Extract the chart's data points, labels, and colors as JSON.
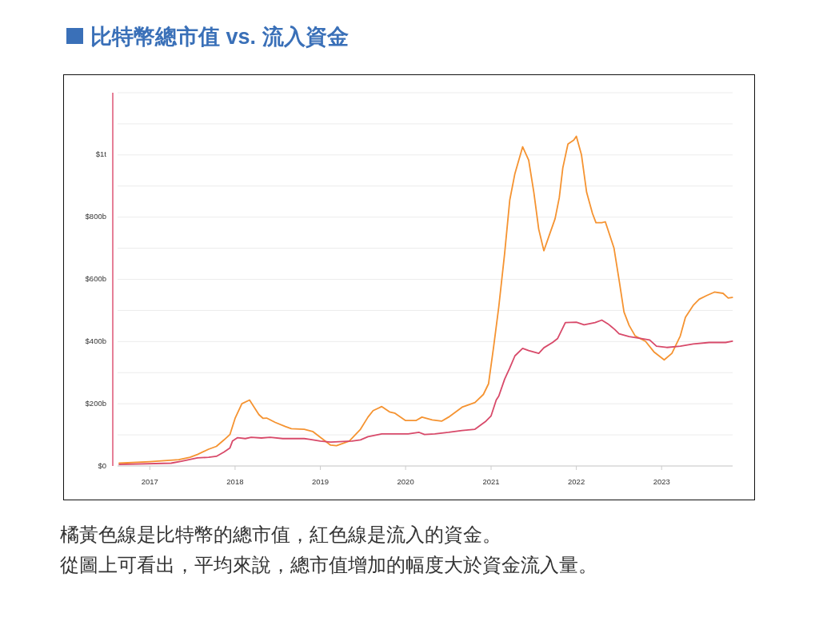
{
  "chart_data": {
    "type": "line",
    "title": "比特幣總市值 vs. 流入資金",
    "annotations": [
      "橘黃色線是比特幣的總市值，紅色線是流入的資金。",
      "從圖上可看出，平均來說，總市值增加的幅度大於資金流入量。"
    ],
    "xlim": [
      "2016-08-16",
      "2023-11-01"
    ],
    "xticks": [
      "2017",
      "2018",
      "2019",
      "2020",
      "2021",
      "2022",
      "2023"
    ],
    "ylim": [
      0,
      1200000000000.0
    ],
    "yticks": [
      {
        "value": 0,
        "label": "$0"
      },
      {
        "value": 100000000000.0,
        "label": null
      },
      {
        "value": 200000000000.0,
        "label": "$200b"
      },
      {
        "value": 300000000000.0,
        "label": null
      },
      {
        "value": 400000000000.0,
        "label": "$400b"
      },
      {
        "value": 500000000000.0,
        "label": null
      },
      {
        "value": 600000000000.0,
        "label": "$600b"
      },
      {
        "value": 700000000000.0,
        "label": null
      },
      {
        "value": 800000000000.0,
        "label": "$800b"
      },
      {
        "value": 900000000000.0,
        "label": null
      },
      {
        "value": 1000000000000.0,
        "label": "$1t"
      },
      {
        "value": 1100000000000.0,
        "label": null
      },
      {
        "value": 1200000000000.0,
        "label": null
      }
    ],
    "grid": "y",
    "series": [
      {
        "color": "#f59331",
        "x": [
          "2016-08-23",
          "2017-01-01",
          "2017-05-05",
          "2017-06-22",
          "2017-07-24",
          "2017-09-10",
          "2017-10-13",
          "2017-11-15",
          "2017-12-10",
          "2018-01-01",
          "2018-01-30",
          "2018-03-04",
          "2018-04-13",
          "2018-05-01",
          "2018-05-16",
          "2018-06-22",
          "2018-08-04",
          "2018-08-30",
          "2018-10-24",
          "2018-11-29",
          "2019-02-14",
          "2019-03-11",
          "2019-05-05",
          "2019-06-22",
          "2019-07-24",
          "2019-08-15",
          "2019-09-21",
          "2019-10-24",
          "2019-11-15",
          "2020-01-01",
          "2020-02-14",
          "2020-03-11",
          "2020-04-24",
          "2020-06-03",
          "2020-07-03",
          "2020-08-30",
          "2020-10-24",
          "2020-11-29",
          "2020-12-21",
          "2021-01-12",
          "2021-02-03",
          "2021-02-28",
          "2021-03-22",
          "2021-04-13",
          "2021-05-16",
          "2021-06-11",
          "2021-07-03",
          "2021-07-24",
          "2021-08-15",
          "2021-09-10",
          "2021-10-02",
          "2021-10-20",
          "2021-11-04",
          "2021-11-26",
          "2021-12-21",
          "2022-01-01",
          "2022-01-23",
          "2022-02-14",
          "2022-03-11",
          "2022-03-26",
          "2022-04-20",
          "2022-05-05",
          "2022-06-11",
          "2022-07-03",
          "2022-07-24",
          "2022-08-15",
          "2022-09-10",
          "2022-10-24",
          "2022-11-29",
          "2023-01-12",
          "2023-02-14",
          "2023-03-22",
          "2023-04-13",
          "2023-05-16",
          "2023-06-11",
          "2023-07-13",
          "2023-08-15",
          "2023-09-21",
          "2023-10-13",
          "2023-10-31"
        ],
        "values": [
          9000000000.0,
          14000000000.0,
          20000000000.0,
          28000000000.0,
          37000000000.0,
          54000000000.0,
          63000000000.0,
          84000000000.0,
          101000000000.0,
          153000000000.0,
          200000000000.0,
          212000000000.0,
          165000000000.0,
          153000000000.0,
          154000000000.0,
          140000000000.0,
          127000000000.0,
          120000000000.0,
          118000000000.0,
          111000000000.0,
          67000000000.0,
          65000000000.0,
          80000000000.0,
          118000000000.0,
          157000000000.0,
          178000000000.0,
          191000000000.0,
          174000000000.0,
          170000000000.0,
          146000000000.0,
          146000000000.0,
          157000000000.0,
          148000000000.0,
          144000000000.0,
          157000000000.0,
          189000000000.0,
          204000000000.0,
          230000000000.0,
          264000000000.0,
          384000000000.0,
          512000000000.0,
          683000000000.0,
          855000000000.0,
          940000000000.0,
          1026000000000.0,
          983000000000.0,
          880000000000.0,
          761000000000.0,
          692000000000.0,
          748000000000.0,
          795000000000.0,
          863000000000.0,
          958000000000.0,
          1035000000000.0,
          1048000000000.0,
          1060000000000.0,
          1000000000000.0,
          880000000000.0,
          812000000000.0,
          782000000000.0,
          782000000000.0,
          785000000000.0,
          701000000000.0,
          598000000000.0,
          495000000000.0,
          452000000000.0,
          418000000000.0,
          401000000000.0,
          367000000000.0,
          341000000000.0,
          362000000000.0,
          418000000000.0,
          478000000000.0,
          516000000000.0,
          536000000000.0,
          548000000000.0,
          559000000000.0,
          555000000000.0,
          540000000000.0,
          542000000000.0
        ]
      },
      {
        "color": "#d84a6a",
        "x": [
          "2016-08-23",
          "2017-04-02",
          "2017-05-16",
          "2017-07-24",
          "2017-09-10",
          "2017-10-13",
          "2017-11-15",
          "2017-12-10",
          "2017-12-21",
          "2018-01-12",
          "2018-02-14",
          "2018-03-11",
          "2018-04-24",
          "2018-05-31",
          "2018-07-24",
          "2018-10-24",
          "2018-11-15",
          "2019-01-01",
          "2019-02-14",
          "2019-05-16",
          "2019-06-22",
          "2019-07-24",
          "2019-09-21",
          "2020-01-12",
          "2020-02-28",
          "2020-03-22",
          "2020-05-05",
          "2020-07-03",
          "2020-08-30",
          "2020-10-24",
          "2020-12-10",
          "2021-01-01",
          "2021-01-23",
          "2021-02-03",
          "2021-02-28",
          "2021-03-22",
          "2021-04-13",
          "2021-05-16",
          "2021-06-11",
          "2021-07-24",
          "2021-08-15",
          "2021-09-21",
          "2021-10-13",
          "2021-11-15",
          "2022-01-01",
          "2022-02-03",
          "2022-03-22",
          "2022-04-20",
          "2022-05-16",
          "2022-06-14",
          "2022-07-03",
          "2022-08-15",
          "2022-10-02",
          "2022-11-11",
          "2022-12-10",
          "2023-01-23",
          "2023-03-22",
          "2023-05-16",
          "2023-07-24",
          "2023-10-02",
          "2023-10-31"
        ],
        "values": [
          5000000000.0,
          9000000000.0,
          15000000000.0,
          26000000000.0,
          28000000000.0,
          31000000000.0,
          45000000000.0,
          58000000000.0,
          80000000000.0,
          91000000000.0,
          88000000000.0,
          92000000000.0,
          90000000000.0,
          92000000000.0,
          88000000000.0,
          88000000000.0,
          86000000000.0,
          80000000000.0,
          77000000000.0,
          80000000000.0,
          84000000000.0,
          94000000000.0,
          103000000000.0,
          103000000000.0,
          108000000000.0,
          101000000000.0,
          103000000000.0,
          108000000000.0,
          114000000000.0,
          118000000000.0,
          144000000000.0,
          161000000000.0,
          212000000000.0,
          225000000000.0,
          279000000000.0,
          315000000000.0,
          354000000000.0,
          378000000000.0,
          371000000000.0,
          362000000000.0,
          380000000000.0,
          397000000000.0,
          410000000000.0,
          461000000000.0,
          462000000000.0,
          454000000000.0,
          461000000000.0,
          469000000000.0,
          457000000000.0,
          439000000000.0,
          425000000000.0,
          416000000000.0,
          410000000000.0,
          405000000000.0,
          385000000000.0,
          381000000000.0,
          385000000000.0,
          392000000000.0,
          397000000000.0,
          397000000000.0,
          401000000000.0
        ]
      }
    ]
  }
}
